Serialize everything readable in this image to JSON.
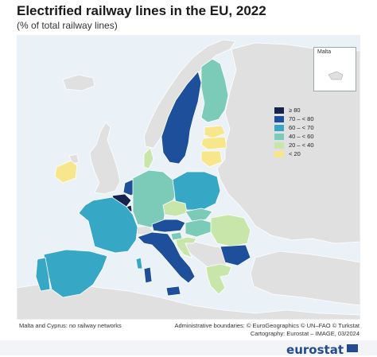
{
  "title": "Electrified railway lines in the EU, 2022",
  "subtitle": "(% of total railway lines)",
  "inset": {
    "label": "Malta"
  },
  "legend": {
    "items": [
      {
        "label": "≥ 80",
        "color": "#16234f"
      },
      {
        "label": "70 – < 80",
        "color": "#1d4f9a"
      },
      {
        "label": "60 – < 70",
        "color": "#36a8c6"
      },
      {
        "label": "40 – < 60",
        "color": "#7ccbb9"
      },
      {
        "label": "20 – < 40",
        "color": "#c8e6a9"
      },
      {
        "label": "< 20",
        "color": "#f8e68c"
      }
    ]
  },
  "notes": {
    "no_data": "Malta and Cyprus: no railway networks",
    "boundaries": "Administrative boundaries: © EuroGeographics © UN–FAO © Turkstat",
    "cartography": "Cartography: Eurostat – IMAGE, 03/2024"
  },
  "logo": {
    "text": "eurostat",
    "color": "#234b91"
  },
  "colors": {
    "sea": "#eaf2f8",
    "non_eu": "#e0e0e0",
    "border": "#ffffff"
  },
  "countries": [
    {
      "name": "Sweden",
      "class": "70 – < 80"
    },
    {
      "name": "Finland",
      "class": "40 – < 60"
    },
    {
      "name": "Estonia",
      "class": "< 20"
    },
    {
      "name": "Latvia",
      "class": "< 20"
    },
    {
      "name": "Lithuania",
      "class": "< 20"
    },
    {
      "name": "Denmark",
      "class": "20 – < 40"
    },
    {
      "name": "Ireland",
      "class": "< 20"
    },
    {
      "name": "Netherlands",
      "class": "70 – < 80"
    },
    {
      "name": "Belgium",
      "class": "≥ 80"
    },
    {
      "name": "Luxembourg",
      "class": "≥ 80"
    },
    {
      "name": "Germany",
      "class": "40 – < 60"
    },
    {
      "name": "Poland",
      "class": "60 – < 70"
    },
    {
      "name": "Czechia",
      "class": "20 – < 40"
    },
    {
      "name": "Slovakia",
      "class": "40 – < 60"
    },
    {
      "name": "Austria",
      "class": "70 – < 80"
    },
    {
      "name": "Hungary",
      "class": "40 – < 60"
    },
    {
      "name": "Slovenia",
      "class": "40 – < 60"
    },
    {
      "name": "Croatia",
      "class": "20 – < 40"
    },
    {
      "name": "Romania",
      "class": "20 – < 40"
    },
    {
      "name": "Bulgaria",
      "class": "70 – < 80"
    },
    {
      "name": "Greece",
      "class": "20 – < 40"
    },
    {
      "name": "Italy",
      "class": "70 – < 80"
    },
    {
      "name": "France",
      "class": "60 – < 70"
    },
    {
      "name": "Spain",
      "class": "60 – < 70"
    },
    {
      "name": "Portugal",
      "class": "60 – < 70"
    }
  ]
}
